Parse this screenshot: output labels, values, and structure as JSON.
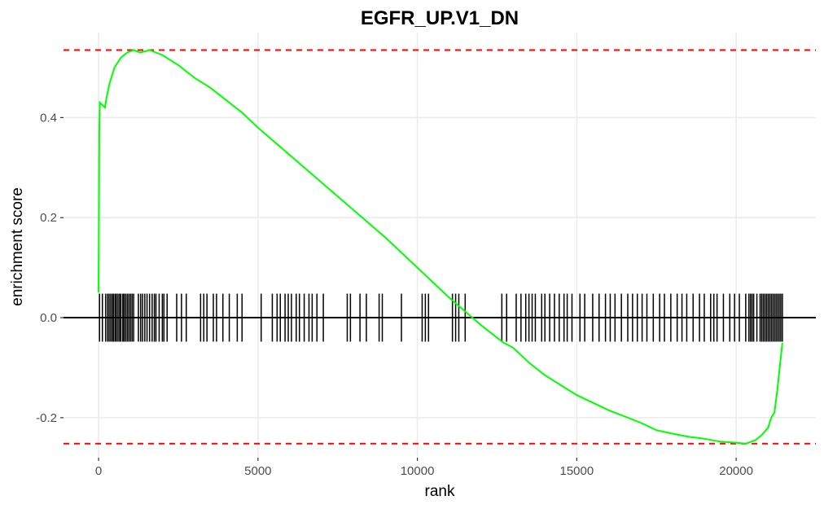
{
  "chart_data": {
    "type": "line",
    "title": "EGFR_UP.V1_DN",
    "xlabel": "rank",
    "ylabel": "enrichment score",
    "xlim": [
      -1100,
      22500
    ],
    "ylim": [
      -0.28,
      0.57
    ],
    "x_ticks": [
      0,
      5000,
      10000,
      15000,
      20000
    ],
    "x_tick_labels": [
      "0",
      "5000",
      "10000",
      "15000",
      "20000"
    ],
    "y_ticks": [
      -0.2,
      0.0,
      0.2,
      0.4
    ],
    "y_tick_labels": [
      "-0.2",
      "0.0",
      "0.2",
      "0.4"
    ],
    "grid": true,
    "max_es": 0.535,
    "min_es": -0.252,
    "colors": {
      "curve": "#00ff00",
      "bounds": "#ff0000",
      "hits": "#000000",
      "grid": "#ebebeb"
    },
    "running_score": {
      "x": [
        0,
        20,
        40,
        200,
        250,
        350,
        500,
        700,
        900,
        1100,
        1300,
        1600,
        2000,
        2500,
        3000,
        3500,
        4000,
        4500,
        5000,
        6000,
        7000,
        8000,
        9000,
        10000,
        11000,
        12000,
        12700,
        13000,
        13500,
        14000,
        15000,
        16000,
        17000,
        17500,
        18000,
        18500,
        19000,
        19500,
        20000,
        20300,
        20600,
        20800,
        21000,
        21100,
        21200,
        21300,
        21400,
        21450
      ],
      "y": [
        0.05,
        0.37,
        0.43,
        0.42,
        0.44,
        0.47,
        0.5,
        0.52,
        0.53,
        0.535,
        0.53,
        0.535,
        0.525,
        0.505,
        0.48,
        0.46,
        0.435,
        0.41,
        0.38,
        0.325,
        0.27,
        0.215,
        0.16,
        0.1,
        0.04,
        -0.015,
        -0.05,
        -0.06,
        -0.09,
        -0.115,
        -0.155,
        -0.185,
        -0.21,
        -0.225,
        -0.232,
        -0.238,
        -0.242,
        -0.248,
        -0.25,
        -0.252,
        -0.245,
        -0.235,
        -0.22,
        -0.2,
        -0.19,
        -0.14,
        -0.08,
        -0.05
      ]
    },
    "hits": {
      "y_range": [
        -0.048,
        0.048
      ],
      "ranks": [
        30,
        120,
        220,
        280,
        330,
        380,
        430,
        470,
        520,
        560,
        610,
        660,
        700,
        760,
        800,
        850,
        900,
        950,
        1000,
        1050,
        1100,
        1250,
        1320,
        1380,
        1450,
        1520,
        1600,
        1680,
        1750,
        1800,
        1900,
        2000,
        2050,
        2150,
        2450,
        2600,
        2750,
        3200,
        3300,
        3400,
        3600,
        3700,
        3900,
        4100,
        4350,
        4500,
        5100,
        5450,
        5600,
        5700,
        5850,
        5950,
        6050,
        6200,
        6300,
        6450,
        6600,
        6700,
        6850,
        7050,
        7800,
        7900,
        8200,
        8400,
        8800,
        8900,
        9500,
        10150,
        10250,
        10350,
        11100,
        11200,
        11300,
        11500,
        12650,
        12800,
        13100,
        13250,
        13400,
        13500,
        13600,
        13700,
        13900,
        14000,
        14150,
        14300,
        14450,
        14600,
        14700,
        14850,
        15100,
        15250,
        15500,
        15700,
        15900,
        16050,
        16200,
        16400,
        16600,
        16750,
        16900,
        17050,
        17200,
        17400,
        17600,
        17750,
        17950,
        18150,
        18300,
        18450,
        18650,
        18850,
        19000,
        19200,
        19300,
        19400,
        19600,
        19800,
        19950,
        20100,
        20300,
        20400,
        20450,
        20500,
        20550,
        20650,
        20750,
        20800,
        20850,
        20900,
        20950,
        21000,
        21050,
        21100,
        21150,
        21200,
        21250,
        21300,
        21350,
        21400,
        21450
      ]
    }
  }
}
